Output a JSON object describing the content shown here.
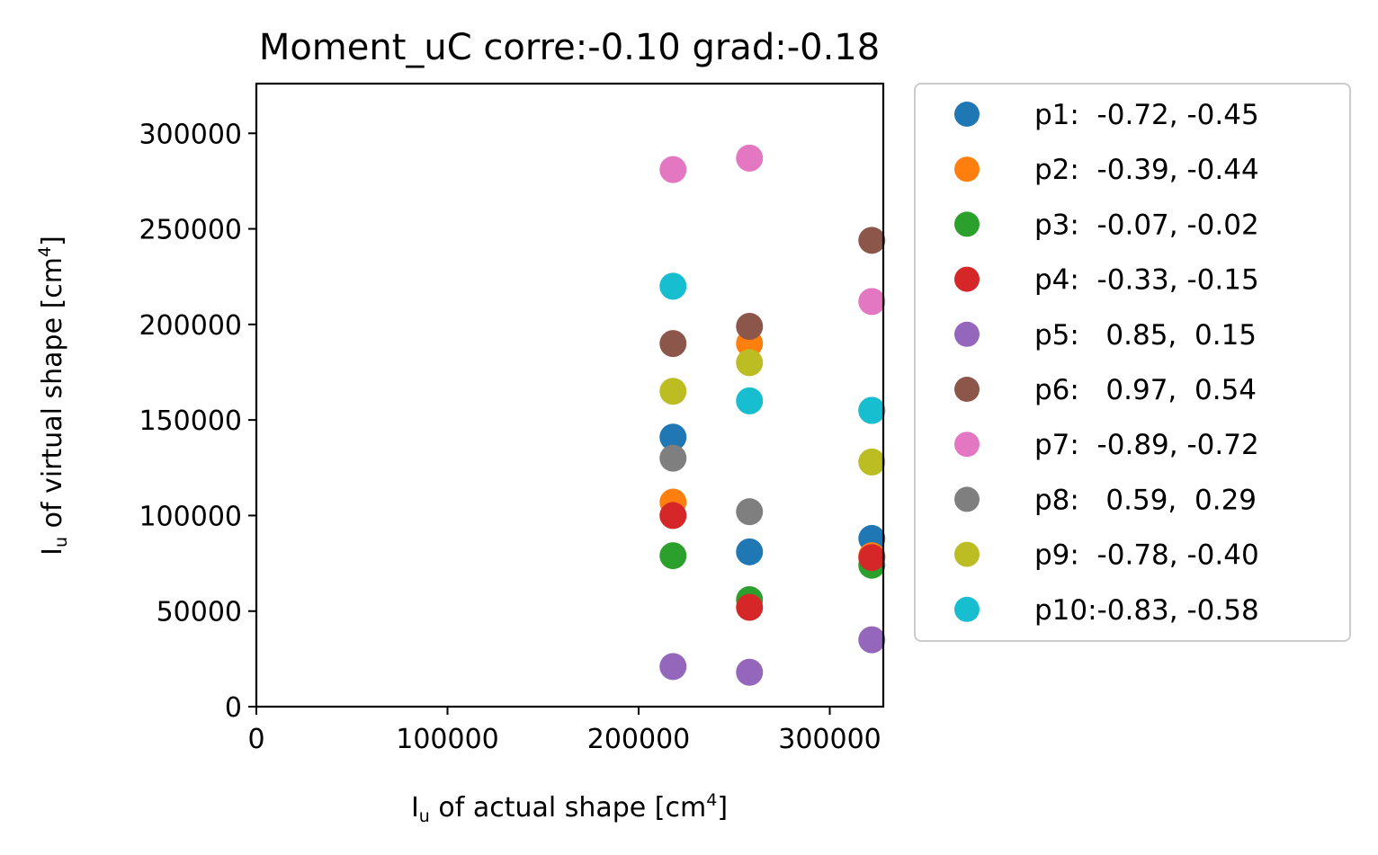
{
  "chart_data": {
    "type": "scatter",
    "title": "Moment_uC corre:-0.10 grad:-0.18",
    "xlabel": {
      "main": "I",
      "sub": "u",
      "mid": " of actual shape [cm",
      "sup": "4",
      "end": "]"
    },
    "ylabel": {
      "main": "I",
      "sub": "u",
      "mid": " of virtual shape [cm",
      "sup": "4",
      "end": "]"
    },
    "xlim": [
      0,
      328000
    ],
    "ylim": [
      0,
      326000
    ],
    "xticks": [
      0,
      100000,
      200000,
      300000
    ],
    "xtick_labels": [
      "0",
      "100000",
      "200000",
      "300000"
    ],
    "yticks": [
      0,
      50000,
      100000,
      150000,
      200000,
      250000,
      300000
    ],
    "ytick_labels": [
      "0",
      "50000",
      "100000",
      "150000",
      "200000",
      "250000",
      "300000"
    ],
    "grid": false,
    "legend_position": "outside-right",
    "x": [
      218000,
      258000,
      322000
    ],
    "series": [
      {
        "name": "p1:  -0.72, -0.45",
        "color": "#1f77b4",
        "values": [
          141000,
          81000,
          88000
        ]
      },
      {
        "name": "p2:  -0.39, -0.44",
        "color": "#ff7f0e",
        "values": [
          107000,
          190000,
          79000
        ]
      },
      {
        "name": "p3:  -0.07, -0.02",
        "color": "#2ca02c",
        "values": [
          79000,
          56000,
          74000
        ]
      },
      {
        "name": "p4:  -0.33, -0.15",
        "color": "#d62728",
        "values": [
          100000,
          52000,
          78000
        ]
      },
      {
        "name": "p5:   0.85,  0.15",
        "color": "#9467bd",
        "values": [
          21000,
          18000,
          35000
        ]
      },
      {
        "name": "p6:   0.97,  0.54",
        "color": "#8c564b",
        "values": [
          190000,
          199000,
          244000
        ]
      },
      {
        "name": "p7:  -0.89, -0.72",
        "color": "#e377c2",
        "values": [
          281000,
          287000,
          212000
        ]
      },
      {
        "name": "p8:   0.59,  0.29",
        "color": "#7f7f7f",
        "values": [
          130000,
          102000,
          155000
        ]
      },
      {
        "name": "p9:  -0.78, -0.40",
        "color": "#bcbd22",
        "values": [
          165000,
          180000,
          128000
        ]
      },
      {
        "name": "p10:-0.83, -0.58",
        "color": "#17becf",
        "values": [
          220000,
          160000,
          155000
        ]
      }
    ]
  }
}
